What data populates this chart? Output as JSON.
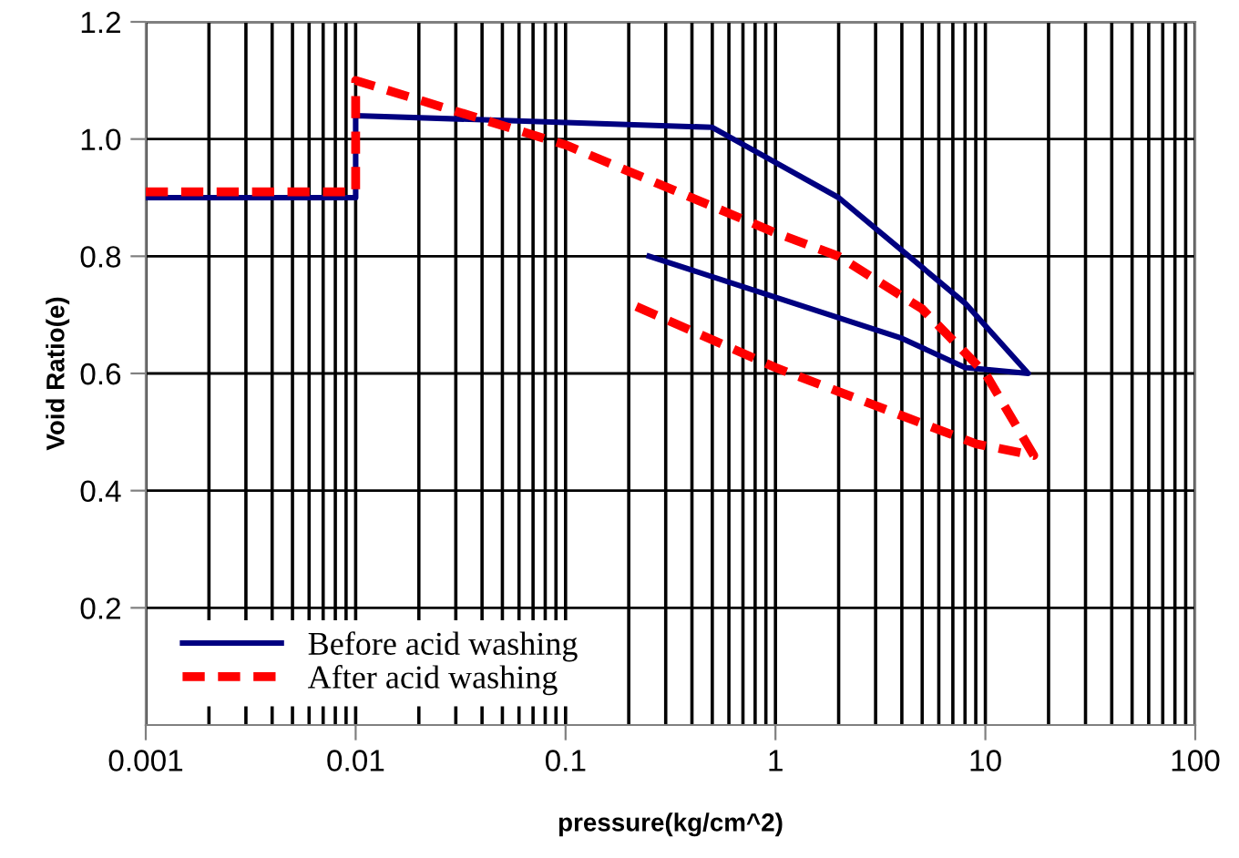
{
  "chart_data": {
    "type": "line",
    "xlabel": "pressure(kg/cm^2)",
    "ylabel": "Void Ratio(e)",
    "log": "x",
    "xlim": [
      0.001,
      100
    ],
    "xticks": [
      0.001,
      0.01,
      0.1,
      1,
      10,
      100
    ],
    "ylim": [
      0,
      1.2
    ],
    "yticks": [
      {
        "value": 0.2,
        "label": "0.2"
      },
      {
        "value": 0.4,
        "label": "0.4"
      },
      {
        "value": 0.6,
        "label": "0.6"
      },
      {
        "value": 0.8,
        "label": "0.8"
      },
      {
        "value": 1.0,
        "label": "1.0"
      },
      {
        "value": 1.2,
        "label": "1.2"
      }
    ],
    "grid": true,
    "legend": "bottom left",
    "series": [
      {
        "name": "Before acid washing",
        "color": "#000080",
        "line_style": "solid",
        "x": [
          0.001,
          0.01,
          0.01,
          0.5,
          1,
          2,
          4,
          8,
          16,
          8,
          4,
          1,
          0.25
        ],
        "values": [
          0.9,
          0.9,
          1.04,
          1.02,
          0.96,
          0.9,
          0.81,
          0.72,
          0.6,
          0.61,
          0.66,
          0.73,
          0.8
        ]
      },
      {
        "name": "After acid washing",
        "color": "#ff0000",
        "line_style": "dashed",
        "x": [
          0.001,
          0.01,
          0.01,
          0.1,
          1,
          2,
          5,
          10,
          17,
          9,
          1,
          0.2
        ],
        "values": [
          0.91,
          0.91,
          1.1,
          0.99,
          0.84,
          0.8,
          0.71,
          0.6,
          0.46,
          0.48,
          0.61,
          0.72
        ]
      }
    ]
  }
}
